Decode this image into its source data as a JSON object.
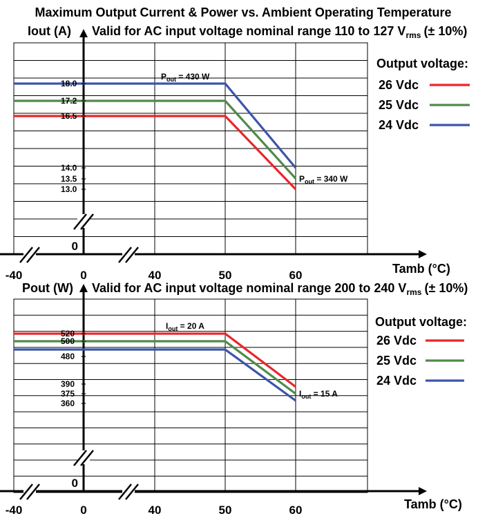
{
  "figure_title": "Maximum Output Current & Power vs. Ambient Operating Temperature",
  "colors": {
    "v26": "#e8262b",
    "v25": "#4f8a4a",
    "v24": "#3b55a8"
  },
  "chart_data": [
    {
      "type": "line",
      "ylabel": "Iout (A)",
      "header_text": "Valid for AC input voltage nominal range 110 to 127 V",
      "header_sub": "rms",
      "header_tail": "(± 10%)",
      "xlabel": "Tamb (°C)",
      "x_ticks": [
        "-40",
        "0",
        "40",
        "50",
        "60"
      ],
      "y_ticks": [
        "18.0",
        "17.2",
        "16.5",
        "14.0",
        "13.5",
        "13.0",
        "0"
      ],
      "legend_title": "Output voltage:",
      "series": [
        {
          "name": "26 Vdc",
          "x": [
            -40,
            50,
            60
          ],
          "y": [
            16.5,
            16.5,
            13.0
          ]
        },
        {
          "name": "25 Vdc",
          "x": [
            -40,
            50,
            60
          ],
          "y": [
            17.2,
            17.2,
            13.5
          ]
        },
        {
          "name": "24 Vdc",
          "x": [
            -40,
            50,
            60
          ],
          "y": [
            18.0,
            18.0,
            14.0
          ]
        }
      ],
      "annotations": [
        {
          "main": "P",
          "sub": "out",
          "tail": " = 430 W"
        },
        {
          "main": "P",
          "sub": "out",
          "tail": " = 340 W"
        }
      ]
    },
    {
      "type": "line",
      "ylabel": "Pout (W)",
      "header_text": "Valid for AC input voltage nominal range 200 to 240 V",
      "header_sub": "rms",
      "header_tail": "(± 10%)",
      "xlabel": "Tamb (°C)",
      "x_ticks": [
        "-40",
        "0",
        "40",
        "50",
        "60"
      ],
      "y_ticks": [
        "520",
        "500",
        "480",
        "390",
        "375",
        "360",
        "0"
      ],
      "legend_title": "Output voltage:",
      "series": [
        {
          "name": "26 Vdc",
          "x": [
            -40,
            50,
            60
          ],
          "y": [
            520,
            520,
            390
          ]
        },
        {
          "name": "25 Vdc",
          "x": [
            -40,
            50,
            60
          ],
          "y": [
            500,
            500,
            375
          ]
        },
        {
          "name": "24 Vdc",
          "x": [
            -40,
            50,
            60
          ],
          "y": [
            480,
            480,
            360
          ]
        }
      ],
      "annotations": [
        {
          "main": "I",
          "sub": "out",
          "tail": " = 20 A"
        },
        {
          "main": "I",
          "sub": "out",
          "tail": " = 15 A"
        }
      ]
    }
  ]
}
